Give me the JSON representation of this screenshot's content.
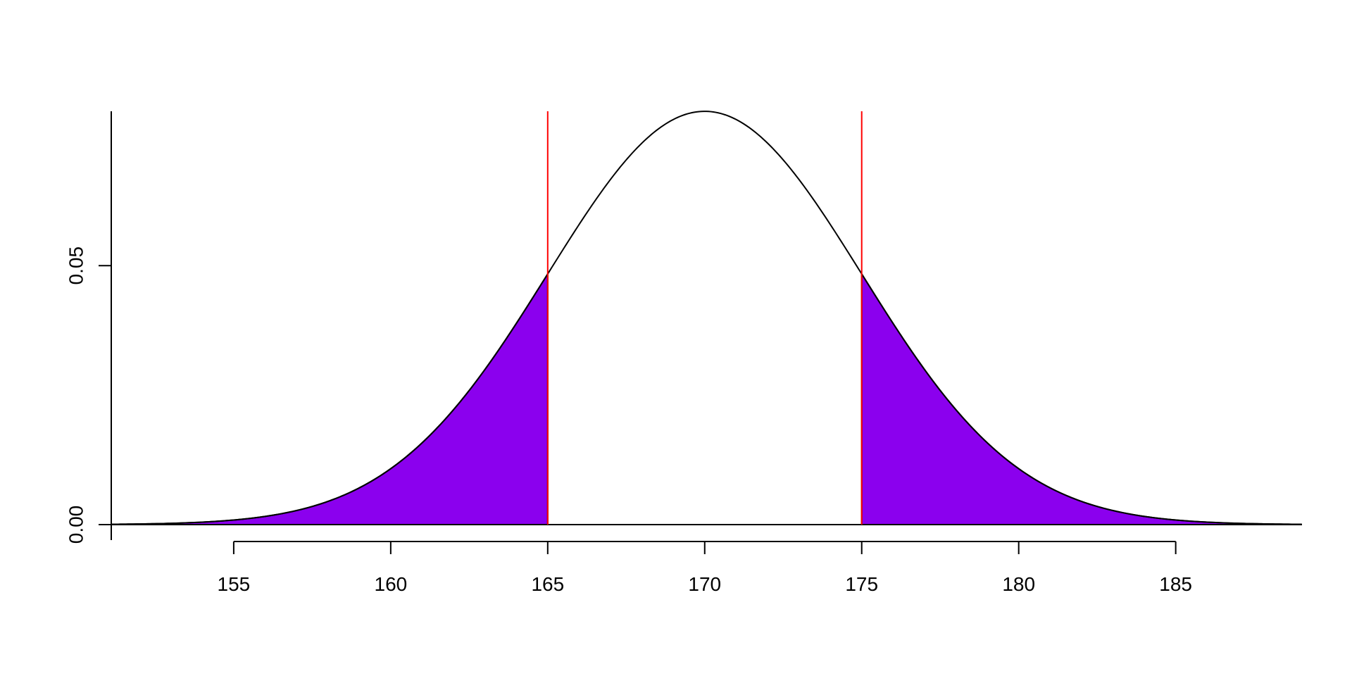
{
  "chart_data": {
    "type": "area",
    "title": "",
    "xlabel": "",
    "ylabel": "",
    "distribution": {
      "family": "normal",
      "mean": 170,
      "sd": 5
    },
    "xlim": [
      151.1,
      189.0
    ],
    "ylim": [
      0,
      0.0798
    ],
    "x_ticks": [
      155,
      160,
      165,
      170,
      175,
      180,
      185
    ],
    "x_tick_labels": [
      "155",
      "160",
      "165",
      "170",
      "175",
      "180",
      "185"
    ],
    "y_ticks": [
      0.0,
      0.05
    ],
    "y_tick_labels": [
      "0.00",
      "0.05"
    ],
    "vertical_lines": [
      165,
      175
    ],
    "shaded_regions": [
      {
        "from": 151.1,
        "to": 165
      },
      {
        "from": 175,
        "to": 189.0
      }
    ],
    "colors": {
      "curve": "#000000",
      "fill": "#8B00EE",
      "vline": "#FF0000",
      "axis": "#000000"
    },
    "grid": false,
    "legend": "none"
  }
}
